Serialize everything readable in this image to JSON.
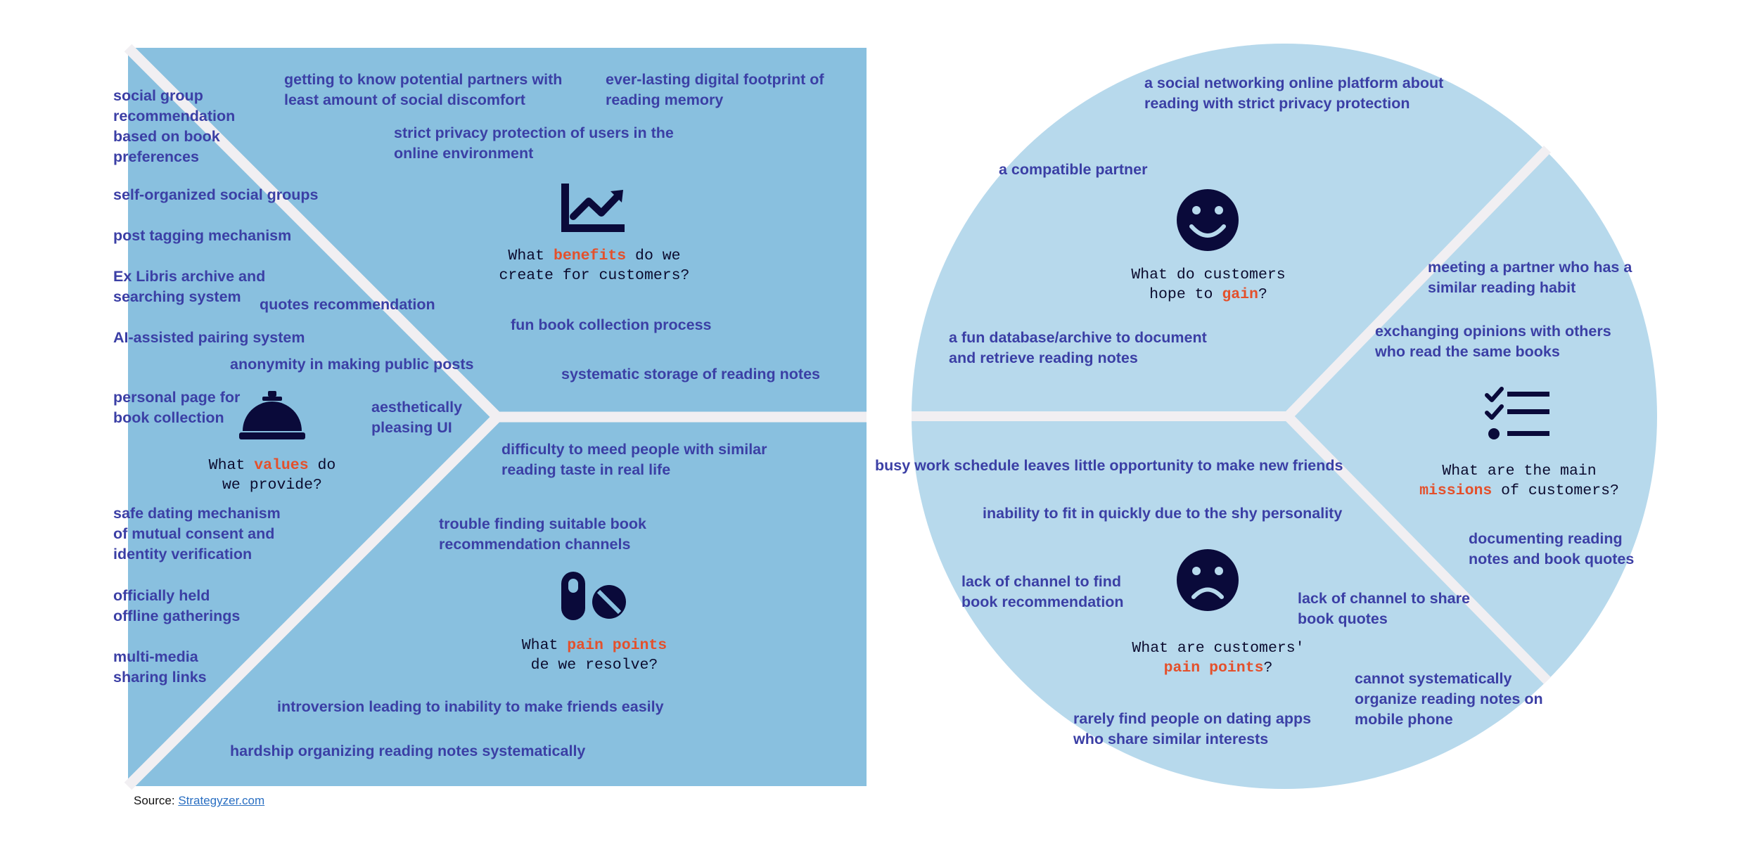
{
  "colors": {
    "square_fill": "#89c0df",
    "circle_fill": "#b7d9ec",
    "divider": "#f1eff2",
    "item_text": "#3b3fa5",
    "icon": "#0a0a3a",
    "highlight": "#e4502b"
  },
  "value_map": {
    "gains": {
      "icon": "chart-line-icon",
      "question": {
        "pre": "What ",
        "hl": "benefits",
        "post1": " do we",
        "line2": "create for customers?"
      },
      "items": [
        "getting to know potential partners with least amount of social discomfort",
        "ever-lasting digital footprint of reading memory",
        "strict privacy protection of users in the online environment",
        "fun book collection process",
        "systematic storage of reading notes"
      ]
    },
    "values": {
      "icon": "service-bell-icon",
      "question": {
        "pre": "What ",
        "hl": "values",
        "post1": " do",
        "line2": "we provide?"
      },
      "items": [
        "social group recommendation based on book preferences",
        "self-organized social groups",
        "post tagging mechanism",
        "Ex Libris archive and searching system",
        "quotes recommendation",
        "AI-assisted pairing system",
        "anonymity in making public posts",
        "personal page for book collection",
        "aesthetically pleasing UI",
        "safe dating mechanism of mutual consent and identity verification",
        "officially held offline gatherings",
        "multi-media sharing links"
      ]
    },
    "pains": {
      "icon": "pills-icon",
      "question": {
        "pre": "What ",
        "hl": "pain points",
        "post1": "",
        "line2": "de we resolve?"
      },
      "items": [
        "difficulty to meed people with similar reading taste in real life",
        "trouble finding suitable book recommendation channels",
        "introversion leading to inability to make friends easily",
        "hardship organizing reading notes systematically"
      ]
    }
  },
  "customer_profile": {
    "gain": {
      "icon": "smile-face-icon",
      "question": {
        "line1": "What do customers",
        "pre": "hope to ",
        "hl": "gain",
        "post": "?"
      },
      "items": [
        "a social networking online platform about reading with strict privacy protection",
        "a compatible partner",
        "a fun database/archive to document and retrieve reading notes"
      ]
    },
    "missions": {
      "icon": "checklist-icon",
      "question": {
        "line1": "What are the main",
        "hl": "missions",
        "post": " of customers?"
      },
      "items": [
        "meeting a partner who has a similar reading habit",
        "exchanging opinions with others who read the same books",
        "documenting reading notes and book quotes"
      ]
    },
    "pains": {
      "icon": "sad-face-icon",
      "question": {
        "line1": "What are customers'",
        "hl": "pain points",
        "post": "?"
      },
      "items": [
        "busy work schedule leaves little opportunity to make new friends",
        "inability to fit in quickly due to the shy personality",
        "lack of channel to find book recommendation",
        "lack of channel to share book quotes",
        "cannot systematically organize reading notes on mobile phone",
        "rarely find people on dating apps who share similar interests"
      ]
    }
  },
  "source": {
    "label": "Source: ",
    "link_text": "Strategyzer.com"
  }
}
